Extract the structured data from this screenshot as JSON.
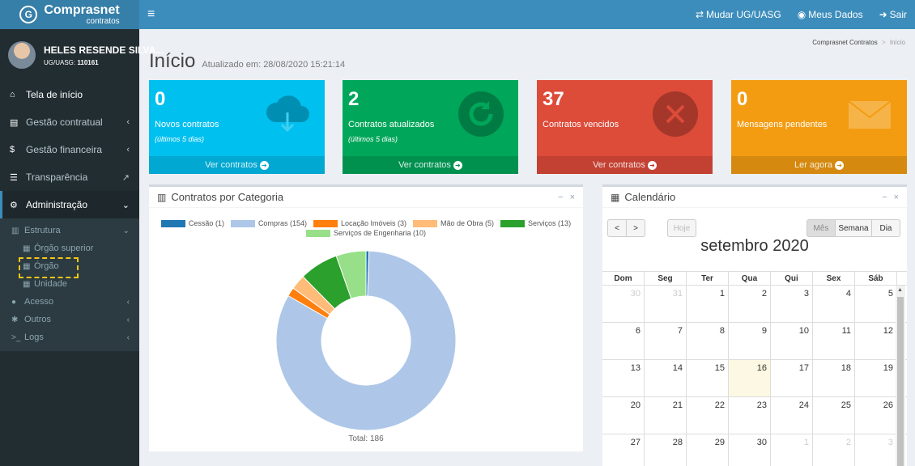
{
  "app": {
    "logo_main": "Comprasnet",
    "logo_sub": "contratos"
  },
  "user": {
    "name": "HELES RESENDE SILVA...",
    "uasg_label": "UG/UASG:",
    "uasg_code": "110161"
  },
  "sidebar": {
    "items": [
      {
        "label": "Tela de início"
      },
      {
        "label": "Gestão contratual"
      },
      {
        "label": "Gestão financeira"
      },
      {
        "label": "Transparência"
      },
      {
        "label": "Administração"
      }
    ],
    "admin_sub": {
      "estrutura": "Estrutura",
      "orgao_superior": "Órgão superior",
      "orgao": "Órgão",
      "unidade": "Unidade",
      "acesso": "Acesso",
      "outros": "Outros",
      "logs": "Logs"
    }
  },
  "topbar": {
    "mudar": "Mudar UG/UASG",
    "meus_dados": "Meus Dados",
    "sair": "Sair"
  },
  "header": {
    "title": "Início",
    "updated": "Atualizado em: 28/08/2020 15:21:14"
  },
  "breadcrumb": {
    "root": "Comprasnet Contratos",
    "sep": ">",
    "current": "Início"
  },
  "stats": [
    {
      "value": "0",
      "label": "Novos contratos",
      "sub": "(últimos 5 dias)",
      "link": "Ver contratos",
      "icon": "cloud-download-icon",
      "color": "#00c0ef"
    },
    {
      "value": "2",
      "label": "Contratos atualizados",
      "sub": "(últimos 5 dias)",
      "link": "Ver contratos",
      "icon": "refresh-icon",
      "color": "#00a65a"
    },
    {
      "value": "37",
      "label": "Contratos vencidos",
      "sub": "",
      "link": "Ver contratos",
      "icon": "times-circle-icon",
      "color": "#dd4b39"
    },
    {
      "value": "0",
      "label": "Mensagens pendentes",
      "sub": "",
      "link": "Ler agora",
      "icon": "envelope-icon",
      "color": "#f39c12"
    }
  ],
  "chart_box": {
    "title": "Contratos por Categoria"
  },
  "chart_data": {
    "type": "pie",
    "categories": [
      "Cessão",
      "Compras",
      "Locação Imóveis",
      "Mão de Obra",
      "Serviços",
      "Serviços de Engenharia"
    ],
    "legend_labels": [
      "Cessão (1)",
      "Compras (154)",
      "Locação Imóveis (3)",
      "Mão de Obra (5)",
      "Serviços (13)",
      "Serviços de Engenharia (10)"
    ],
    "values": [
      1,
      154,
      3,
      5,
      13,
      10
    ],
    "colors": [
      "#1f77b4",
      "#aec7e8",
      "#ff7f0e",
      "#ffbb78",
      "#2ca02c",
      "#98df8a"
    ],
    "total_label": "Total: 186",
    "legend_position": "top"
  },
  "calendar": {
    "title": "Calendário",
    "month_title": "setembro 2020",
    "buttons": {
      "prev": "<",
      "next": ">",
      "today": "Hoje",
      "month": "Mês",
      "week": "Semana",
      "day": "Dia"
    },
    "weekdays": [
      "Dom",
      "Seg",
      "Ter",
      "Qua",
      "Qui",
      "Sex",
      "Sáb"
    ],
    "weeks": [
      [
        {
          "d": "30",
          "o": true
        },
        {
          "d": "31",
          "o": true
        },
        {
          "d": "1"
        },
        {
          "d": "2"
        },
        {
          "d": "3"
        },
        {
          "d": "4"
        },
        {
          "d": "5"
        }
      ],
      [
        {
          "d": "6"
        },
        {
          "d": "7"
        },
        {
          "d": "8"
        },
        {
          "d": "9"
        },
        {
          "d": "10"
        },
        {
          "d": "11"
        },
        {
          "d": "12"
        }
      ],
      [
        {
          "d": "13"
        },
        {
          "d": "14"
        },
        {
          "d": "15"
        },
        {
          "d": "16",
          "t": true
        },
        {
          "d": "17"
        },
        {
          "d": "18"
        },
        {
          "d": "19"
        }
      ],
      [
        {
          "d": "20"
        },
        {
          "d": "21"
        },
        {
          "d": "22"
        },
        {
          "d": "23"
        },
        {
          "d": "24"
        },
        {
          "d": "25"
        },
        {
          "d": "26"
        }
      ],
      [
        {
          "d": "27"
        },
        {
          "d": "28"
        },
        {
          "d": "29"
        },
        {
          "d": "30"
        },
        {
          "d": "1",
          "o": true
        },
        {
          "d": "2",
          "o": true
        },
        {
          "d": "3",
          "o": true
        }
      ]
    ]
  },
  "box_tools": {
    "minimize": "−",
    "close": "×"
  }
}
